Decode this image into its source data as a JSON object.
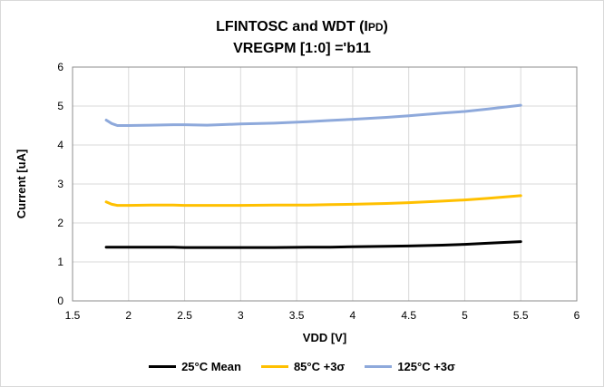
{
  "chart_data": {
    "type": "line",
    "title_line1_prefix": "LFINTOSC and WDT (I",
    "title_line1_sub": "PD",
    "title_line1_suffix": ")",
    "title_line2": "VREGPM [1:0] ='b11",
    "xlabel": "VDD [V]",
    "ylabel": "Current [uA]",
    "xlim": [
      1.5,
      6
    ],
    "ylim": [
      0,
      6
    ],
    "xticks": [
      "1.5",
      "2",
      "2.5",
      "3",
      "3.5",
      "4",
      "4.5",
      "5",
      "5.5",
      "6"
    ],
    "yticks": [
      "0",
      "1",
      "2",
      "3",
      "4",
      "5",
      "6"
    ],
    "grid": true,
    "legend_position": "bottom",
    "series": [
      {
        "name": "25°C Mean",
        "color": "#000000",
        "x": [
          1.8,
          1.9,
          2.0,
          2.2,
          2.4,
          2.5,
          2.7,
          3.0,
          3.3,
          3.6,
          3.8,
          4.0,
          4.3,
          4.5,
          4.8,
          5.0,
          5.2,
          5.5
        ],
        "y": [
          1.38,
          1.38,
          1.38,
          1.38,
          1.38,
          1.37,
          1.37,
          1.37,
          1.37,
          1.38,
          1.38,
          1.39,
          1.4,
          1.41,
          1.43,
          1.45,
          1.48,
          1.52
        ]
      },
      {
        "name": "85°C +3σ",
        "color": "#ffc000",
        "x": [
          1.8,
          1.85,
          1.9,
          2.0,
          2.2,
          2.4,
          2.5,
          2.7,
          3.0,
          3.3,
          3.6,
          3.8,
          4.0,
          4.3,
          4.5,
          4.8,
          5.0,
          5.2,
          5.5
        ],
        "y": [
          2.54,
          2.48,
          2.45,
          2.45,
          2.46,
          2.46,
          2.45,
          2.45,
          2.45,
          2.46,
          2.46,
          2.47,
          2.48,
          2.5,
          2.52,
          2.56,
          2.59,
          2.63,
          2.7
        ]
      },
      {
        "name": "125°C +3σ",
        "color": "#8ea9db",
        "x": [
          1.8,
          1.85,
          1.9,
          2.0,
          2.2,
          2.4,
          2.5,
          2.7,
          3.0,
          3.3,
          3.6,
          3.8,
          4.0,
          4.3,
          4.5,
          4.8,
          5.0,
          5.2,
          5.5
        ],
        "y": [
          4.64,
          4.55,
          4.5,
          4.5,
          4.51,
          4.52,
          4.52,
          4.51,
          4.54,
          4.56,
          4.6,
          4.63,
          4.66,
          4.71,
          4.75,
          4.82,
          4.86,
          4.92,
          5.02
        ]
      }
    ]
  }
}
